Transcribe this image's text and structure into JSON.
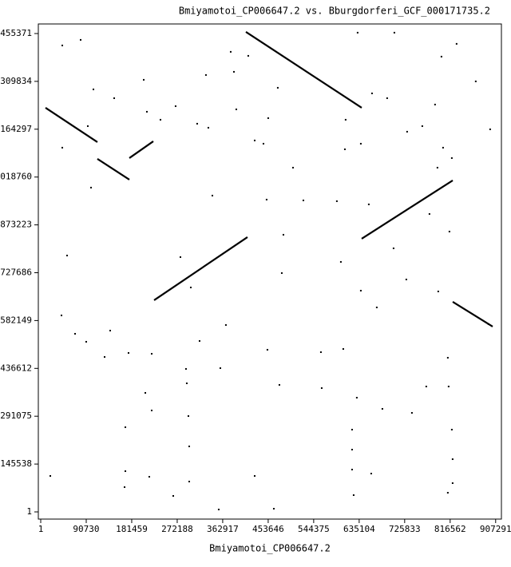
{
  "chart_data": {
    "type": "scatter",
    "title": "Bmiyamotoi_CP006647.2 vs. Bburgdorferi_GCF_000171735.2",
    "x_label": "Bmiyamotoi_CP006647.2",
    "color": "#000000",
    "xlim": [
      -4800,
      918800
    ],
    "ylim": [
      -21870,
      1484500
    ],
    "xticks": [
      1,
      90730,
      181459,
      272188,
      362917,
      453646,
      544375,
      635104,
      725833,
      816562,
      907291
    ],
    "yticks": [
      1,
      145538,
      291075,
      436612,
      582149,
      727686,
      873223,
      1018760,
      1164297,
      1309834,
      1455371
    ],
    "segments": {
      "x1": [
        9550,
        113000,
        176750,
        226100,
        409200,
        640100,
        821700
      ],
      "y1": [
        1229600,
        1074000,
        1076500,
        644000,
        1460400,
        831000,
        639100
      ],
      "x2": [
        113000,
        176750,
        224500,
        412300,
        640100,
        821700,
        901300
      ],
      "y2": [
        1125100,
        1010900,
        1127500,
        835900,
        1229600,
        1008500,
        563800
      ]
    },
    "points": {
      "x": [
        79600,
        43000,
        105100,
        146500,
        205400,
        93900,
        43000,
        100300,
        52500,
        211700,
        238800,
        269000,
        312000,
        334300,
        329500,
        378900,
        385300,
        390000,
        413900,
        426700,
        444200,
        453700,
        472800,
        503100,
        484000,
        450500,
        523800,
        590600,
        608100,
        632000,
        705300,
        660700,
        690900,
        638400,
        606600,
        654300,
        703700,
        729100,
        775300,
        791200,
        786400,
        802400,
        819900,
        799200,
        829400,
        867600,
        896300,
        893100,
        792800,
        815100,
        598600,
        480800,
        638400,
        670200,
        369300,
        342300,
        299300,
        278600,
        19100,
        41400,
        68500,
        90700,
        138500,
        127400,
        175100,
        221300,
        316800,
        358200,
        289700,
        291300,
        168800,
        208600,
        221300,
        294500,
        296100,
        168800,
        167200,
        216500,
        264300,
        296100,
        355000,
        426700,
        464900,
        452100,
        476000,
        558800,
        560400,
        603400,
        630400,
        620900,
        620900,
        620900,
        624100,
        659100,
        681400,
        740300,
        768900,
        811900,
        813500,
        819900,
        821500,
        821500,
        811900,
        730700,
        761000
      ],
      "y": [
        1436100,
        1419100,
        1285500,
        1258700,
        1314600,
        1173700,
        1108100,
        986600,
        780000,
        1217400,
        1193100,
        1234400,
        1181000,
        1168800,
        1329200,
        1399700,
        1338900,
        1224700,
        1387500,
        1130000,
        1120200,
        1198000,
        1290300,
        1047300,
        843200,
        950100,
        947700,
        945300,
        1193100,
        1458000,
        1458000,
        1273300,
        1258700,
        1120200,
        1103200,
        935600,
        801900,
        707100,
        906400,
        1047300,
        1239300,
        1108100,
        1076500,
        1385100,
        1424000,
        1309800,
        1164000,
        571100,
        670700,
        852900,
        760600,
        726600,
        673100,
        622100,
        568600,
        962300,
        682800,
        775200,
        109400,
        597800,
        541900,
        517600,
        551600,
        471400,
        483600,
        481100,
        520000,
        437400,
        435000,
        391200,
        257600,
        362100,
        308600,
        291600,
        199300,
        123900,
        75300,
        106900,
        48600,
        92300,
        7300,
        109400,
        9700,
        493300,
        386400,
        486000,
        376700,
        495700,
        347500,
        250300,
        189500,
        128800,
        51000,
        116600,
        313500,
        301300,
        381500,
        469000,
        381500,
        250300,
        160400,
        87500,
        58300,
        1156700,
        1173700
      ]
    }
  }
}
